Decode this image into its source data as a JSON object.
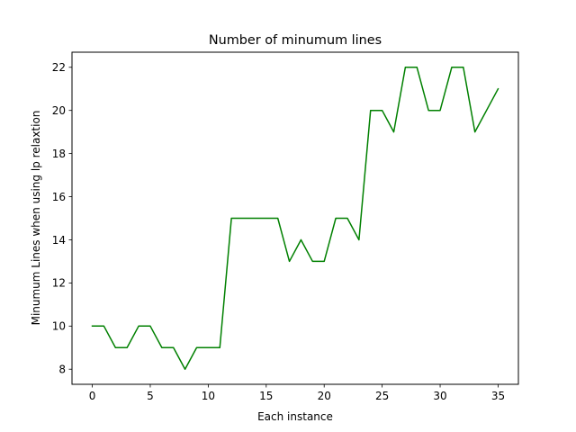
{
  "chart_data": {
    "type": "line",
    "title": "Number of minumum lines",
    "xlabel": "Each instance",
    "ylabel": "Minumum Lines when using lp relaxtion",
    "xlim": [
      -1.75,
      36.75
    ],
    "ylim": [
      7.3,
      22.7
    ],
    "xticks": [
      0,
      5,
      10,
      15,
      20,
      25,
      30,
      35
    ],
    "yticks": [
      8,
      10,
      12,
      14,
      16,
      18,
      20,
      22
    ],
    "grid": false,
    "series": [
      {
        "color": "#008000",
        "x": [
          0,
          1,
          2,
          3,
          4,
          5,
          6,
          7,
          8,
          9,
          10,
          11,
          12,
          13,
          14,
          15,
          16,
          17,
          18,
          19,
          20,
          21,
          22,
          23,
          24,
          25,
          26,
          27,
          28,
          29,
          30,
          31,
          32,
          33,
          34,
          35
        ],
        "y": [
          10,
          10,
          9,
          9,
          10,
          10,
          9,
          9,
          8,
          9,
          9,
          9,
          15,
          15,
          15,
          15,
          15,
          13,
          14,
          13,
          13,
          15,
          15,
          14,
          20,
          20,
          19,
          22,
          22,
          20,
          20,
          22,
          22,
          19,
          20,
          21
        ]
      }
    ]
  }
}
